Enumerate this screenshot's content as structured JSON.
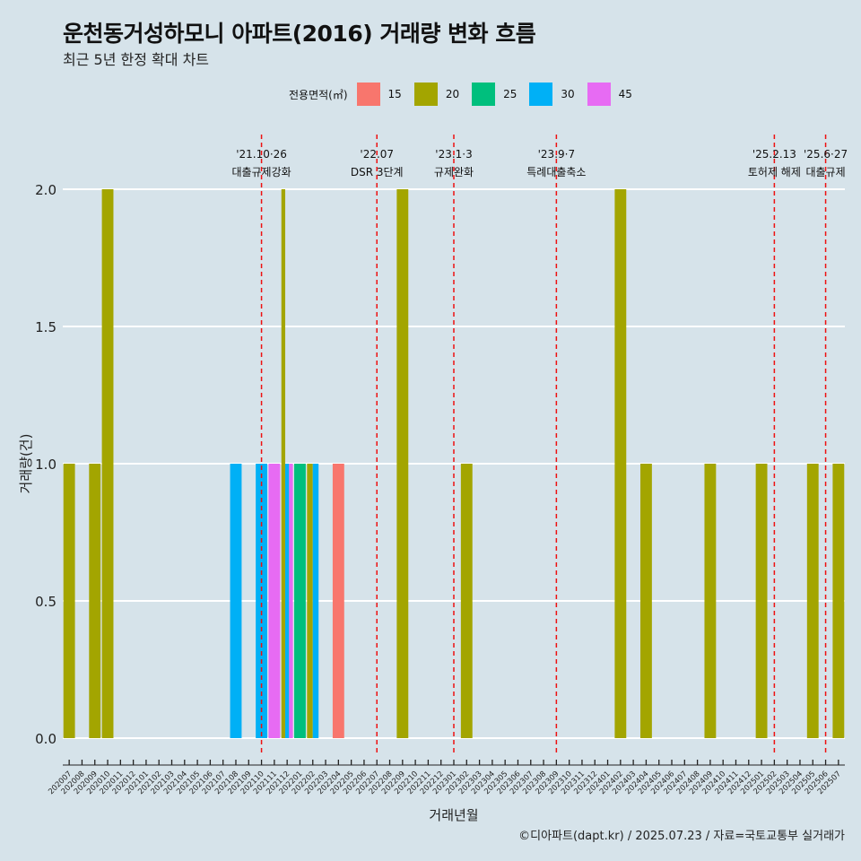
{
  "title": "운천동거성하모니 아파트(2016) 거래량 변화 흐름",
  "subtitle": "최근 5년 한정 확대 차트",
  "legend": {
    "title": "전용면적(㎡)",
    "items": [
      {
        "label": "15",
        "color": "#f8766d"
      },
      {
        "label": "20",
        "color": "#a3a500"
      },
      {
        "label": "25",
        "color": "#00bf7d"
      },
      {
        "label": "30",
        "color": "#00b0f6"
      },
      {
        "label": "45",
        "color": "#e76bf3"
      }
    ]
  },
  "caption": "©디아파트(dapt.kr) / 2025.07.23 / 자료=국토교통부 실거래가",
  "chart_data": {
    "type": "bar",
    "xlabel": "거래년월",
    "ylabel": "거래량(건)",
    "ylim": [
      0,
      2
    ],
    "yticks": [
      "0.0",
      "0.5",
      "1.0",
      "1.5",
      "2.0"
    ],
    "grid": "horizontal",
    "legend_position": "top",
    "categories": [
      "202007",
      "202008",
      "202009",
      "202010",
      "202011",
      "202012",
      "202101",
      "202102",
      "202103",
      "202104",
      "202105",
      "202106",
      "202107",
      "202108",
      "202109",
      "202110",
      "202111",
      "202112",
      "202201",
      "202202",
      "202203",
      "202204",
      "202205",
      "202206",
      "202207",
      "202208",
      "202209",
      "202210",
      "202211",
      "202212",
      "202301",
      "202302",
      "202303",
      "202304",
      "202305",
      "202306",
      "202307",
      "202308",
      "202309",
      "202310",
      "202311",
      "202312",
      "202401",
      "202402",
      "202403",
      "202404",
      "202405",
      "202406",
      "202407",
      "202408",
      "202409",
      "202410",
      "202411",
      "202412",
      "202501",
      "202502",
      "202503",
      "202504",
      "202505",
      "202506",
      "202507"
    ],
    "bars": [
      {
        "month": "202007",
        "segments": [
          {
            "area": "20",
            "value": 1
          }
        ]
      },
      {
        "month": "202009",
        "segments": [
          {
            "area": "20",
            "value": 1
          }
        ]
      },
      {
        "month": "202010",
        "segments": [
          {
            "area": "20",
            "value": 2
          }
        ]
      },
      {
        "month": "202108",
        "segments": [
          {
            "area": "30",
            "value": 1
          }
        ]
      },
      {
        "month": "202110",
        "segments": [
          {
            "area": "30",
            "value": 1
          }
        ]
      },
      {
        "month": "202111",
        "segments": [
          {
            "area": "45",
            "value": 1
          }
        ]
      },
      {
        "month": "202112",
        "segments": [
          {
            "area": "20",
            "value": 2
          },
          {
            "area": "30",
            "value": 1
          },
          {
            "area": "45",
            "value": 1
          }
        ]
      },
      {
        "month": "202201",
        "segments": [
          {
            "area": "25",
            "value": 1
          }
        ]
      },
      {
        "month": "202202",
        "segments": [
          {
            "area": "20",
            "value": 1
          },
          {
            "area": "30",
            "value": 1
          }
        ]
      },
      {
        "month": "202204",
        "segments": [
          {
            "area": "15",
            "value": 1
          }
        ]
      },
      {
        "month": "202209",
        "segments": [
          {
            "area": "20",
            "value": 2
          }
        ]
      },
      {
        "month": "202302",
        "segments": [
          {
            "area": "20",
            "value": 1
          }
        ]
      },
      {
        "month": "202402",
        "segments": [
          {
            "area": "20",
            "value": 2
          }
        ]
      },
      {
        "month": "202404",
        "segments": [
          {
            "area": "20",
            "value": 1
          }
        ]
      },
      {
        "month": "202409",
        "segments": [
          {
            "area": "20",
            "value": 1
          }
        ]
      },
      {
        "month": "202501",
        "segments": [
          {
            "area": "20",
            "value": 1
          }
        ]
      },
      {
        "month": "202505",
        "segments": [
          {
            "area": "20",
            "value": 1
          }
        ]
      },
      {
        "month": "202507",
        "segments": [
          {
            "area": "20",
            "value": 1
          }
        ]
      }
    ],
    "annotations": [
      {
        "month": "202110",
        "date": "'21.10·26",
        "label": "대출규제강화"
      },
      {
        "month": "202207",
        "date": "'22.07",
        "label": "DSR 3단계"
      },
      {
        "month": "202301",
        "date": "'23.1·3",
        "label": "규제완화"
      },
      {
        "month": "202309",
        "date": "'23.9·7",
        "label": "특례대출축소"
      },
      {
        "month": "202502",
        "date": "'25.2.13",
        "label": "토허제 해제"
      },
      {
        "month": "202506",
        "date": "'25.6·27",
        "label": "대출규제"
      }
    ]
  }
}
